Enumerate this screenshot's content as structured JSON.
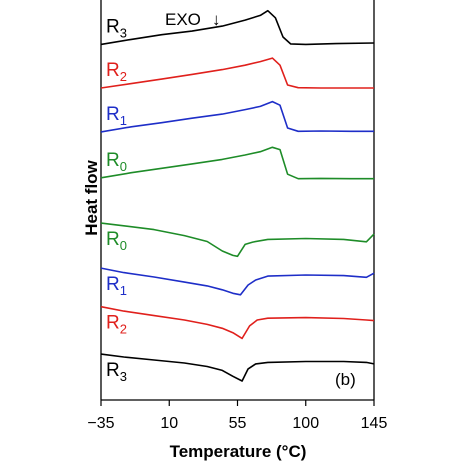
{
  "chart_data": {
    "type": "line",
    "title": "",
    "xlabel": "Temperature (°C)",
    "ylabel": "Heat flow",
    "xlim": [
      -35,
      145
    ],
    "xticks": [
      -35,
      10,
      55,
      100,
      145
    ],
    "xtick_labels": [
      "−35",
      "10",
      "55",
      "100",
      "145"
    ],
    "y_ticks_shown": false,
    "grid": false,
    "legend": "none (curves labelled inline on the left)",
    "annotations": {
      "exo": "EXO",
      "exo_arrow": "↓",
      "panel": "(b)"
    },
    "series": [
      {
        "name": "R3",
        "label_base": "R",
        "label_sub": "3",
        "color": "#000000",
        "group": "heating",
        "x": [
          -35,
          -15,
          5,
          25,
          45,
          60,
          70,
          75,
          80,
          85,
          90,
          100,
          120,
          145
        ],
        "y": [
          20,
          21.7,
          23.3,
          24.5,
          26.2,
          28.2,
          29.8,
          31.4,
          29,
          22.5,
          20.2,
          20,
          20.3,
          20.5
        ]
      },
      {
        "name": "R2",
        "label_base": "R",
        "label_sub": "2",
        "color": "#e0201c",
        "group": "heating",
        "x": [
          -35,
          -15,
          5,
          25,
          45,
          60,
          70,
          78,
          83,
          88,
          95,
          110,
          130,
          145
        ],
        "y": [
          5.3,
          6.8,
          8.3,
          9.9,
          11.5,
          13,
          14.2,
          15.4,
          13,
          6.3,
          5.4,
          5.3,
          5.3,
          5.3
        ]
      },
      {
        "name": "R1",
        "label_base": "R",
        "label_sub": "1",
        "color": "#1e2ec8",
        "group": "heating",
        "x": [
          -35,
          -15,
          5,
          25,
          45,
          60,
          70,
          78,
          83,
          88,
          95,
          110,
          130,
          145
        ],
        "y": [
          -9.5,
          -7.8,
          -6.4,
          -4.9,
          -3.5,
          -2,
          -0.9,
          0.7,
          -0.5,
          -8.2,
          -9.3,
          -9.2,
          -9.3,
          -9.3
        ]
      },
      {
        "name": "R0",
        "label_base": "R",
        "label_sub": "0",
        "color": "#1e8c28",
        "group": "heating",
        "x": [
          -35,
          -15,
          5,
          25,
          45,
          60,
          70,
          78,
          83,
          88,
          95,
          110,
          130,
          145
        ],
        "y": [
          -25,
          -23.3,
          -21.8,
          -20.3,
          -18.8,
          -17.3,
          -16.2,
          -14.7,
          -15.5,
          -23.8,
          -25.3,
          -25.2,
          -25.3,
          -25.3
        ]
      },
      {
        "name": "R0",
        "label_base": "R",
        "label_sub": "0",
        "color": "#1e8c28",
        "group": "cooling",
        "x": [
          -35,
          -20,
          0,
          20,
          35,
          45,
          52,
          55,
          60,
          65,
          75,
          100,
          125,
          140,
          145
        ],
        "y": [
          -40.3,
          -41.2,
          -42.5,
          -44.5,
          -46.5,
          -49.7,
          -51.2,
          -51.5,
          -47.5,
          -46.7,
          -45.8,
          -45.5,
          -45.8,
          -46.6,
          -44
        ]
      },
      {
        "name": "R1",
        "label_base": "R",
        "label_sub": "1",
        "color": "#1e2ec8",
        "group": "cooling",
        "x": [
          -35,
          -20,
          0,
          20,
          35,
          45,
          52,
          57,
          62,
          67,
          75,
          100,
          125,
          140,
          145
        ],
        "y": [
          -55.5,
          -57,
          -58.5,
          -60.2,
          -61.5,
          -62.8,
          -64,
          -64.5,
          -61.2,
          -59.5,
          -58.2,
          -57.8,
          -58,
          -58.6,
          -57.2
        ]
      },
      {
        "name": "R2",
        "label_base": "R",
        "label_sub": "2",
        "color": "#e0201c",
        "group": "cooling",
        "x": [
          -35,
          -20,
          0,
          20,
          35,
          45,
          52,
          58,
          63,
          68,
          75,
          100,
          125,
          140,
          145
        ],
        "y": [
          -68.5,
          -70,
          -71.5,
          -73,
          -74.5,
          -75.8,
          -77.3,
          -79.2,
          -75,
          -73,
          -72.4,
          -72.2,
          -72.5,
          -73,
          -73.2
        ]
      },
      {
        "name": "R3",
        "label_base": "R",
        "label_sub": "3",
        "color": "#000000",
        "group": "cooling",
        "x": [
          -35,
          -20,
          0,
          20,
          35,
          45,
          52,
          58,
          62,
          67,
          75,
          100,
          125,
          140,
          145
        ],
        "y": [
          -84.5,
          -85.5,
          -86.5,
          -87.5,
          -88.7,
          -90,
          -92,
          -93.6,
          -89.5,
          -87.8,
          -87.3,
          -87,
          -87,
          -87.3,
          -87.8
        ]
      }
    ]
  }
}
